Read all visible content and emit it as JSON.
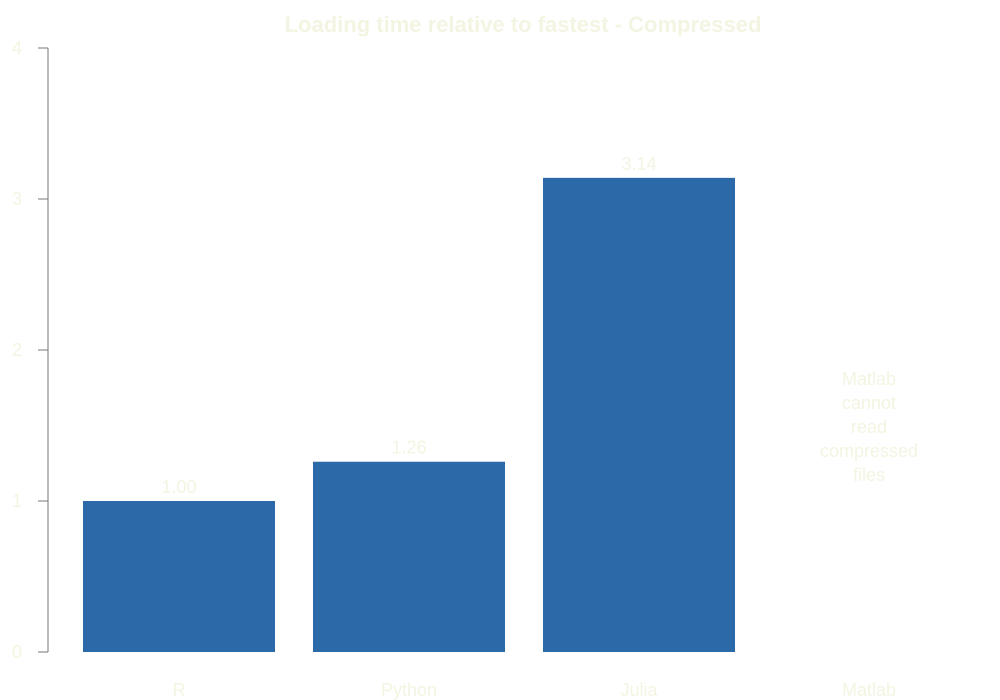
{
  "chart_data": {
    "type": "bar",
    "title": "Loading time relative to fastest - Compressed",
    "xlabel": "",
    "ylabel": "",
    "categories": [
      "R",
      "Python",
      "Julia",
      "Matlab"
    ],
    "values": [
      1.0,
      1.26,
      3.14,
      null
    ],
    "data_labels": [
      "1.00",
      "1.26",
      "3.14",
      ""
    ],
    "ylim": [
      0,
      4
    ],
    "yticks": [
      0,
      1,
      2,
      3,
      4
    ],
    "grid": false,
    "annotations": [
      {
        "category": "Matlab",
        "lines": [
          "Matlab",
          "cannot",
          "read",
          "compressed",
          "files"
        ]
      }
    ]
  },
  "colors": {
    "bar": "#2b69a8",
    "text": "#f4f4e2",
    "axis": "#777777",
    "background": "#ffffff"
  }
}
